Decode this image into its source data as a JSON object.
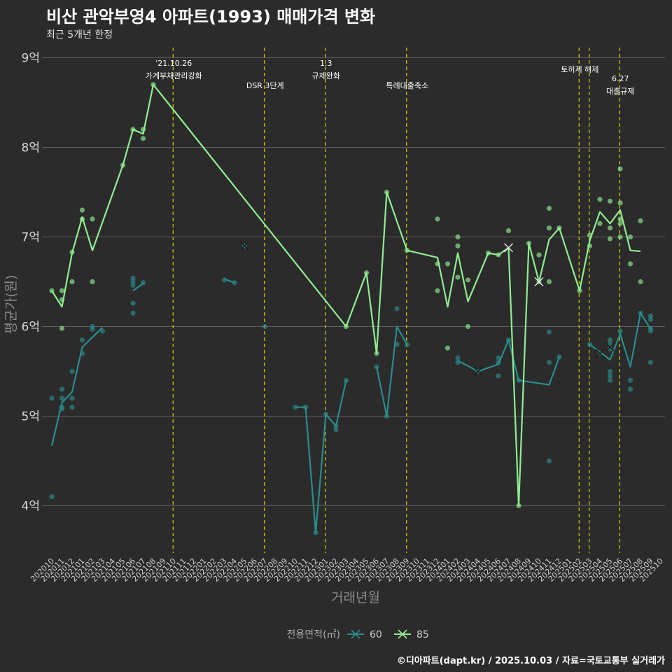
{
  "chart_data": {
    "type": "line",
    "title": "비산 관악부영4 아파트(1993) 매매가격 변화",
    "subtitle": "최근 5개년 한정",
    "xlabel": "거래년월",
    "ylabel": "평균가(원)",
    "ylim": [
      3.45,
      9.1
    ],
    "y_ticks": [
      {
        "value": 4,
        "label": "4억"
      },
      {
        "value": 5,
        "label": "5억"
      },
      {
        "value": 6,
        "label": "6억"
      },
      {
        "value": 7,
        "label": "7억"
      },
      {
        "value": 8,
        "label": "8억"
      },
      {
        "value": 9,
        "label": "9억"
      }
    ],
    "x_categories": [
      "2020.10",
      "2020.11",
      "2020.12",
      "2021.01",
      "2021.02",
      "2021.03",
      "2021.04",
      "2021.05",
      "2021.06",
      "2021.07",
      "2021.08",
      "2021.09",
      "2021.10",
      "2021.11",
      "2021.12",
      "2022.01",
      "2022.02",
      "2022.03",
      "2022.04",
      "2022.05",
      "2022.06",
      "2022.07",
      "2022.08",
      "2022.09",
      "2022.10",
      "2022.11",
      "2022.12",
      "2023.01",
      "2023.02",
      "2023.03",
      "2023.04",
      "2023.05",
      "2023.06",
      "2023.07",
      "2023.08",
      "2023.09",
      "2023.10",
      "2023.11",
      "2023.12",
      "2024.01",
      "2024.02",
      "2024.03",
      "2024.04",
      "2024.05",
      "2024.06",
      "2024.07",
      "2024.08",
      "2024.09",
      "2024.10",
      "2024.11",
      "2024.12",
      "2025.01",
      "2025.02",
      "2025.03",
      "2025.04",
      "2025.05",
      "2025.06",
      "2025.07",
      "2025.08",
      "2025.09",
      "2025.10"
    ],
    "x_tick_labels": [
      "202010",
      "202011",
      "202012",
      "202101",
      "202102",
      "202103",
      "202104",
      "202105",
      "202106",
      "202107",
      "202108",
      "202109",
      "202110",
      "202111",
      "202112",
      "202201",
      "202202",
      "202203",
      "202204",
      "202205",
      "202206",
      "202207",
      "202208",
      "202209",
      "202210",
      "202211",
      "202212",
      "202301",
      "202302",
      "202303",
      "202304",
      "202305",
      "202306",
      "202307",
      "202308",
      "202309",
      "202310",
      "202311",
      "202312",
      "202401",
      "202402",
      "202403",
      "202404",
      "202405",
      "202406",
      "202407",
      "202408",
      "202409",
      "202410",
      "202411",
      "202412",
      "202501",
      "202502",
      "202503",
      "202504",
      "202505",
      "202506",
      "202507",
      "202508",
      "202509",
      "202510"
    ],
    "events": [
      {
        "x": 11.95,
        "lines": [
          "'21.10.26",
          "가계부채관리강화"
        ]
      },
      {
        "x": 20.95,
        "lines": [
          "DSR 3단계"
        ]
      },
      {
        "x": 26.95,
        "lines": [
          "1.3",
          "규제완화"
        ]
      },
      {
        "x": 34.95,
        "lines": [
          "특례대출축소"
        ]
      },
      {
        "x": 51.95,
        "lines": [
          "토허제 해제"
        ]
      },
      {
        "x": 52.95,
        "lines": []
      },
      {
        "x": 55.95,
        "lines": [
          "6.27",
          "대출규제"
        ]
      }
    ],
    "series": [
      {
        "name": "60",
        "color": "#2a8c8c",
        "line": [
          [
            0,
            4.67
          ],
          [
            1,
            5.15
          ],
          [
            2,
            5.27
          ],
          [
            3,
            5.77
          ],
          [
            5,
            5.99
          ],
          null,
          [
            8,
            6.4
          ],
          [
            9,
            6.48
          ],
          null,
          [
            17,
            6.53
          ],
          [
            18,
            6.49
          ],
          null,
          [
            24,
            5.1
          ],
          [
            25,
            5.1
          ],
          [
            26,
            3.7
          ],
          [
            27,
            5.02
          ],
          [
            28,
            4.89
          ],
          [
            29,
            5.4
          ],
          null,
          [
            32,
            5.55
          ],
          [
            33,
            5.0
          ],
          [
            34,
            6.0
          ],
          [
            35,
            5.8
          ],
          null,
          [
            40,
            5.62
          ],
          [
            42,
            5.5
          ],
          [
            44,
            5.58
          ],
          [
            45,
            5.85
          ],
          [
            46,
            5.4
          ],
          [
            49,
            5.35
          ],
          [
            50,
            5.66
          ],
          null,
          [
            53,
            5.8
          ],
          [
            55,
            5.63
          ],
          [
            56,
            5.92
          ],
          [
            57,
            5.55
          ],
          [
            58,
            6.15
          ],
          [
            59,
            5.97
          ]
        ],
        "points": [
          [
            0,
            5.2
          ],
          [
            0,
            4.1
          ],
          [
            1,
            5.3
          ],
          [
            1,
            5.2
          ],
          [
            1,
            5.1
          ],
          [
            1,
            5.08
          ],
          [
            2,
            5.5
          ],
          [
            2,
            5.2
          ],
          [
            2,
            5.1
          ],
          [
            3,
            5.85
          ],
          [
            3,
            5.7
          ],
          [
            4,
            5.97
          ],
          [
            4,
            6.0
          ],
          [
            5,
            5.95
          ],
          [
            8,
            6.54
          ],
          [
            8,
            6.5
          ],
          [
            8,
            6.46
          ],
          [
            8,
            6.26
          ],
          [
            8,
            6.15
          ],
          [
            9,
            6.49
          ],
          [
            17,
            6.52
          ],
          [
            18,
            6.49
          ],
          [
            19,
            6.9
          ],
          [
            21,
            6.0
          ],
          [
            24,
            5.1
          ],
          [
            25,
            5.1
          ],
          [
            26,
            3.7
          ],
          [
            27,
            5.02
          ],
          [
            28,
            4.89
          ],
          [
            28,
            4.85
          ],
          [
            29,
            5.4
          ],
          [
            32,
            5.55
          ],
          [
            33,
            5.0
          ],
          [
            34,
            6.2
          ],
          [
            34,
            5.8
          ],
          [
            35,
            5.8
          ],
          [
            40,
            5.65
          ],
          [
            40,
            5.6
          ],
          [
            42,
            5.5
          ],
          [
            44,
            5.65
          ],
          [
            44,
            5.6
          ],
          [
            44,
            5.45
          ],
          [
            45,
            5.85
          ],
          [
            46,
            5.4
          ],
          [
            49,
            5.94
          ],
          [
            49,
            5.6
          ],
          [
            49,
            4.5
          ],
          [
            50,
            5.66
          ],
          [
            53,
            5.8
          ],
          [
            54,
            5.7
          ],
          [
            55,
            5.85
          ],
          [
            55,
            5.8
          ],
          [
            55,
            5.75
          ],
          [
            55,
            5.5
          ],
          [
            55,
            5.45
          ],
          [
            55,
            5.4
          ],
          [
            56,
            5.95
          ],
          [
            57,
            5.4
          ],
          [
            57,
            5.3
          ],
          [
            58,
            6.15
          ],
          [
            59,
            6.12
          ],
          [
            59,
            6.08
          ],
          [
            59,
            5.98
          ],
          [
            59,
            5.95
          ],
          [
            59,
            5.6
          ]
        ],
        "x_marks": [
          [
            19,
            6.9
          ],
          [
            42,
            5.5
          ],
          [
            54,
            5.7
          ],
          [
            55,
            5.77
          ]
        ]
      },
      {
        "name": "85",
        "color": "#90ee90",
        "line": [
          [
            0,
            6.4
          ],
          [
            1,
            6.22
          ],
          [
            2,
            6.82
          ],
          [
            3,
            7.22
          ],
          [
            4,
            6.85
          ],
          [
            7,
            7.8
          ],
          [
            8,
            8.2
          ],
          [
            9,
            8.15
          ],
          [
            10,
            8.7
          ],
          [
            29,
            6.0
          ],
          [
            31,
            6.6
          ],
          [
            32,
            5.7
          ],
          [
            33,
            7.5
          ],
          [
            35,
            6.85
          ],
          [
            38,
            6.77
          ],
          [
            39,
            6.22
          ],
          [
            40,
            6.82
          ],
          [
            41,
            6.28
          ],
          [
            43,
            6.82
          ],
          [
            44,
            6.8
          ],
          [
            45,
            6.88
          ],
          [
            46,
            4.0
          ],
          [
            47,
            6.93
          ],
          [
            48,
            6.5
          ],
          [
            49,
            6.97
          ],
          [
            50,
            7.1
          ],
          [
            52,
            6.4
          ],
          [
            53,
            6.96
          ],
          [
            54,
            7.28
          ],
          [
            55,
            7.15
          ],
          [
            56,
            7.3
          ],
          [
            57,
            6.85
          ],
          [
            58,
            6.84
          ]
        ],
        "points": [
          [
            0,
            6.4
          ],
          [
            1,
            6.4
          ],
          [
            1,
            6.3
          ],
          [
            1,
            5.98
          ],
          [
            2,
            6.83
          ],
          [
            2,
            6.5
          ],
          [
            3,
            7.3
          ],
          [
            3,
            7.2
          ],
          [
            4,
            7.2
          ],
          [
            4,
            6.5
          ],
          [
            7,
            7.8
          ],
          [
            8,
            8.2
          ],
          [
            9,
            8.2
          ],
          [
            9,
            8.1
          ],
          [
            10,
            8.7
          ],
          [
            29,
            6.0
          ],
          [
            31,
            6.6
          ],
          [
            32,
            5.7
          ],
          [
            33,
            7.5
          ],
          [
            35,
            6.85
          ],
          [
            38,
            7.2
          ],
          [
            38,
            6.7
          ],
          [
            38,
            6.4
          ],
          [
            39,
            6.7
          ],
          [
            39,
            5.76
          ],
          [
            40,
            7.0
          ],
          [
            40,
            6.9
          ],
          [
            40,
            6.55
          ],
          [
            41,
            6.52
          ],
          [
            41,
            6.0
          ],
          [
            43,
            6.82
          ],
          [
            44,
            6.8
          ],
          [
            45,
            7.07
          ],
          [
            46,
            4.0
          ],
          [
            47,
            6.93
          ],
          [
            48,
            6.8
          ],
          [
            48,
            6.5
          ],
          [
            49,
            7.32
          ],
          [
            49,
            7.1
          ],
          [
            49,
            6.5
          ],
          [
            50,
            7.1
          ],
          [
            52,
            6.4
          ],
          [
            53,
            7.02
          ],
          [
            53,
            6.9
          ],
          [
            54,
            7.42
          ],
          [
            54,
            7.15
          ],
          [
            55,
            7.4
          ],
          [
            55,
            7.1
          ],
          [
            55,
            6.98
          ],
          [
            56,
            7.76
          ],
          [
            56,
            7.38
          ],
          [
            56,
            7.2
          ],
          [
            56,
            7.15
          ],
          [
            56,
            7.0
          ],
          [
            57,
            7.0
          ],
          [
            57,
            6.7
          ],
          [
            58,
            7.18
          ],
          [
            58,
            6.5
          ]
        ],
        "x_marks": [
          [
            45,
            6.88
          ],
          [
            48,
            6.5
          ]
        ]
      }
    ],
    "legend": {
      "title": "전용면적(㎡)",
      "position": "bottom",
      "items": [
        "60",
        "85"
      ]
    },
    "grid": true
  },
  "footer": "©디아파트(dapt.kr) / 2025.10.03 / 자료=국토교통부 실거래가"
}
